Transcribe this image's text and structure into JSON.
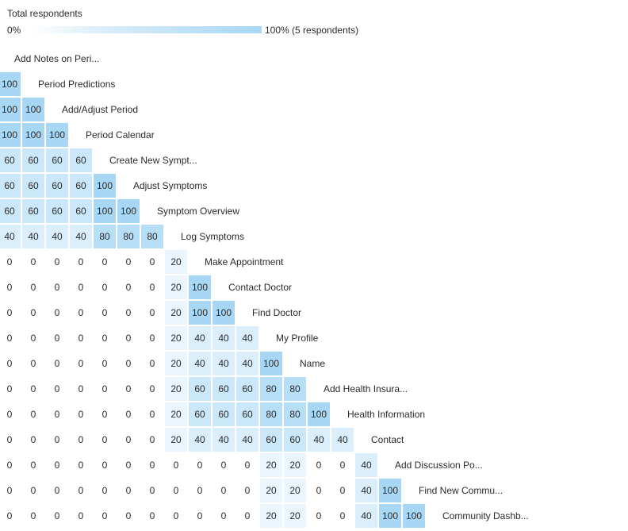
{
  "legend": {
    "title": "Total respondents",
    "min_label": "0%",
    "max_label": "100% (5 respondents)",
    "color_low": "#ffffff",
    "color_high": "#a7d7f5"
  },
  "colors": {
    "0": "#ffffff",
    "20": "#eaf5fd",
    "40": "#daeefb",
    "60": "#cbe7fa",
    "80": "#b7def7",
    "100": "#a7d7f5"
  },
  "rows": [
    {
      "label": "Add Notes on Peri...",
      "values": []
    },
    {
      "label": "Period Predictions",
      "values": [
        100
      ]
    },
    {
      "label": "Add/Adjust Period",
      "values": [
        100,
        100
      ]
    },
    {
      "label": "Period Calendar",
      "values": [
        100,
        100,
        100
      ]
    },
    {
      "label": "Create New Sympt...",
      "values": [
        60,
        60,
        60,
        60
      ]
    },
    {
      "label": "Adjust Symptoms",
      "values": [
        60,
        60,
        60,
        60,
        100
      ]
    },
    {
      "label": "Symptom Overview",
      "values": [
        60,
        60,
        60,
        60,
        100,
        100
      ]
    },
    {
      "label": "Log Symptoms",
      "values": [
        40,
        40,
        40,
        40,
        80,
        80,
        80
      ]
    },
    {
      "label": "Make Appointment",
      "values": [
        0,
        0,
        0,
        0,
        0,
        0,
        0,
        20
      ]
    },
    {
      "label": "Contact Doctor",
      "values": [
        0,
        0,
        0,
        0,
        0,
        0,
        0,
        20,
        100
      ]
    },
    {
      "label": "Find Doctor",
      "values": [
        0,
        0,
        0,
        0,
        0,
        0,
        0,
        20,
        100,
        100
      ]
    },
    {
      "label": "My Profile",
      "values": [
        0,
        0,
        0,
        0,
        0,
        0,
        0,
        20,
        40,
        40,
        40
      ]
    },
    {
      "label": "Name",
      "values": [
        0,
        0,
        0,
        0,
        0,
        0,
        0,
        20,
        40,
        40,
        40,
        100
      ]
    },
    {
      "label": "Add Health Insura...",
      "values": [
        0,
        0,
        0,
        0,
        0,
        0,
        0,
        20,
        60,
        60,
        60,
        80,
        80
      ]
    },
    {
      "label": "Health Information",
      "values": [
        0,
        0,
        0,
        0,
        0,
        0,
        0,
        20,
        60,
        60,
        60,
        80,
        80,
        100
      ]
    },
    {
      "label": "Contact",
      "values": [
        0,
        0,
        0,
        0,
        0,
        0,
        0,
        20,
        40,
        40,
        40,
        60,
        60,
        40,
        40
      ]
    },
    {
      "label": "Add Discussion Po...",
      "values": [
        0,
        0,
        0,
        0,
        0,
        0,
        0,
        0,
        0,
        0,
        0,
        20,
        20,
        0,
        0,
        40
      ]
    },
    {
      "label": "Find New Commu...",
      "values": [
        0,
        0,
        0,
        0,
        0,
        0,
        0,
        0,
        0,
        0,
        0,
        20,
        20,
        0,
        0,
        40,
        100
      ]
    },
    {
      "label": "Community Dashb...",
      "values": [
        0,
        0,
        0,
        0,
        0,
        0,
        0,
        0,
        0,
        0,
        0,
        20,
        20,
        0,
        0,
        40,
        100,
        100
      ]
    }
  ]
}
